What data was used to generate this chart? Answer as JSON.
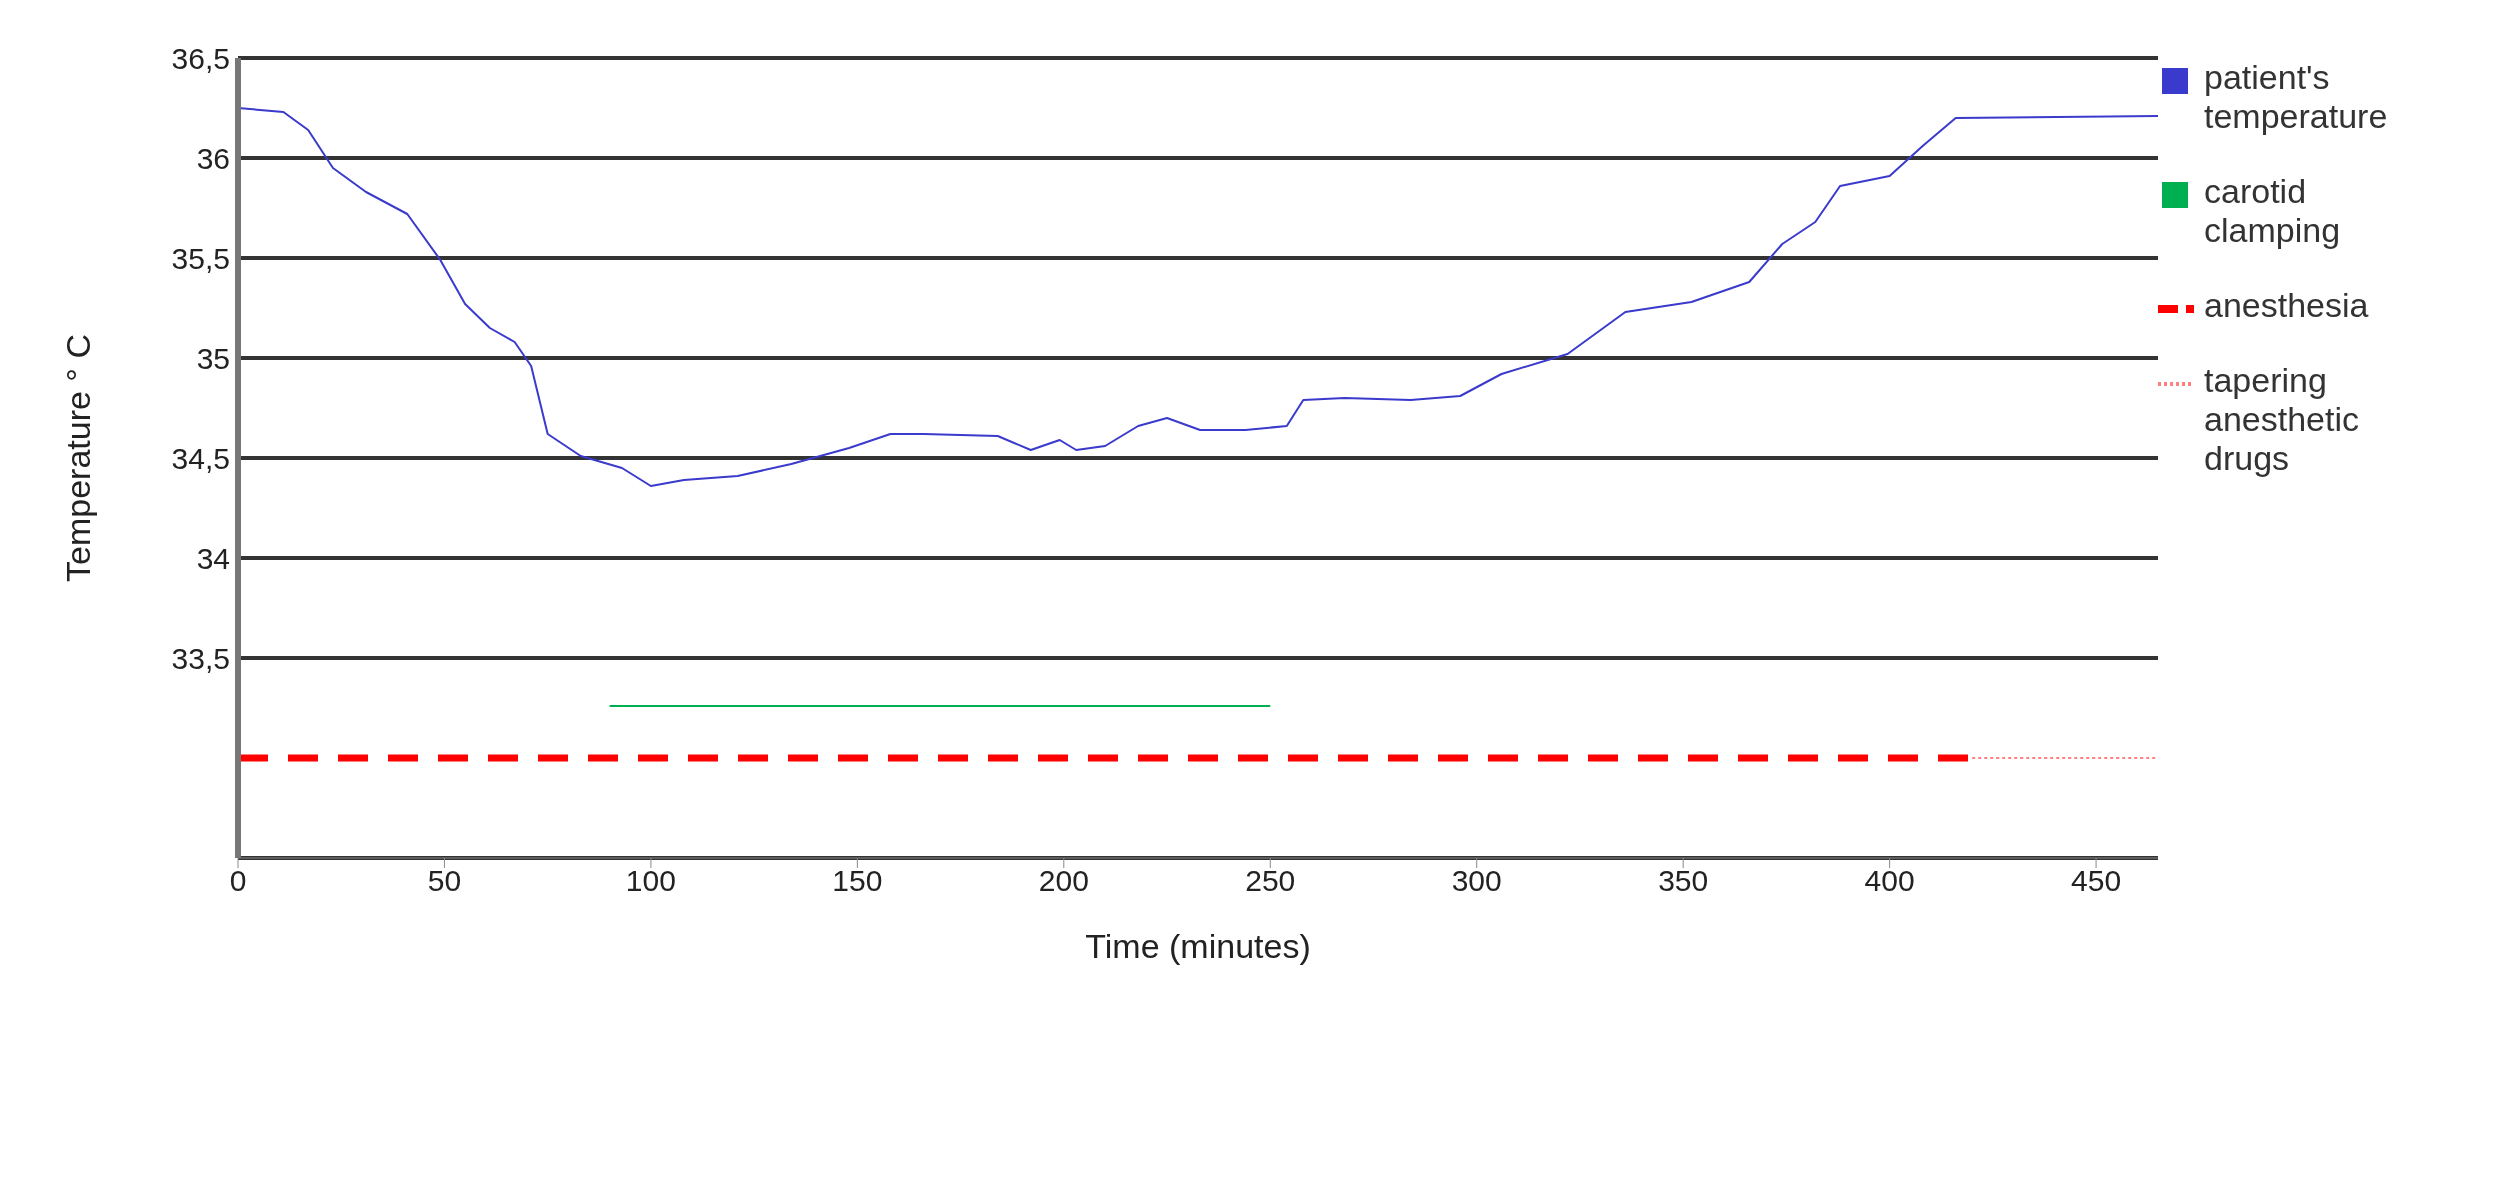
{
  "chart_data": {
    "type": "line",
    "xlabel": "Time (minutes)",
    "ylabel": "Temperature  ° C",
    "xlim": [
      0,
      465
    ],
    "xticks": [
      0,
      50,
      100,
      150,
      200,
      250,
      300,
      350,
      400,
      450
    ],
    "ylim": [
      32.5,
      36.5
    ],
    "yticks": [
      {
        "value": 33.5,
        "label": "33,5"
      },
      {
        "value": 34,
        "label": "34"
      },
      {
        "value": 34.5,
        "label": "34,5"
      },
      {
        "value": 35,
        "label": "35"
      },
      {
        "value": 35.5,
        "label": "35,5"
      },
      {
        "value": 36,
        "label": "36"
      },
      {
        "value": 36.5,
        "label": "36,5"
      }
    ],
    "grid": "y",
    "legend": "right",
    "marker": "none",
    "series": [
      {
        "name": "patient's temperature",
        "color": "#3a3acc",
        "line_style": "solid",
        "x": [
          0,
          11,
          17,
          23,
          31,
          41,
          49,
          55,
          61,
          67,
          71,
          75,
          83,
          93,
          100,
          108,
          121,
          134,
          148,
          158,
          166,
          184,
          192,
          199,
          203,
          210,
          218,
          225,
          233,
          244,
          254,
          258,
          268,
          284,
          296,
          306,
          322,
          336,
          352,
          366,
          374,
          382,
          388,
          400,
          408,
          416,
          465
        ],
        "values": [
          36.25,
          36.23,
          36.14,
          35.95,
          35.83,
          35.72,
          35.49,
          35.27,
          35.15,
          35.08,
          34.96,
          34.62,
          34.51,
          34.45,
          34.36,
          34.39,
          34.41,
          34.47,
          34.55,
          34.62,
          34.62,
          34.61,
          34.54,
          34.59,
          34.54,
          34.56,
          34.66,
          34.7,
          34.64,
          34.64,
          34.66,
          34.79,
          34.8,
          34.79,
          34.81,
          34.92,
          35.02,
          35.23,
          35.28,
          35.38,
          35.57,
          35.68,
          35.86,
          35.91,
          36.06,
          36.2,
          36.21
        ]
      },
      {
        "name": "carotid clamping",
        "color": "#00b050",
        "line_style": "solid",
        "x": [
          90,
          250
        ],
        "values": [
          33.26,
          33.26
        ]
      },
      {
        "name": "anesthesia",
        "color": "#ff0000",
        "line_style": "dashed",
        "x": [
          0,
          420
        ],
        "values": [
          33.0,
          33.0
        ]
      },
      {
        "name": "tapering anesthetic drugs",
        "color": "#ff8080",
        "line_style": "dotted",
        "x": [
          420,
          465
        ],
        "values": [
          33.0,
          33.0
        ]
      }
    ]
  }
}
